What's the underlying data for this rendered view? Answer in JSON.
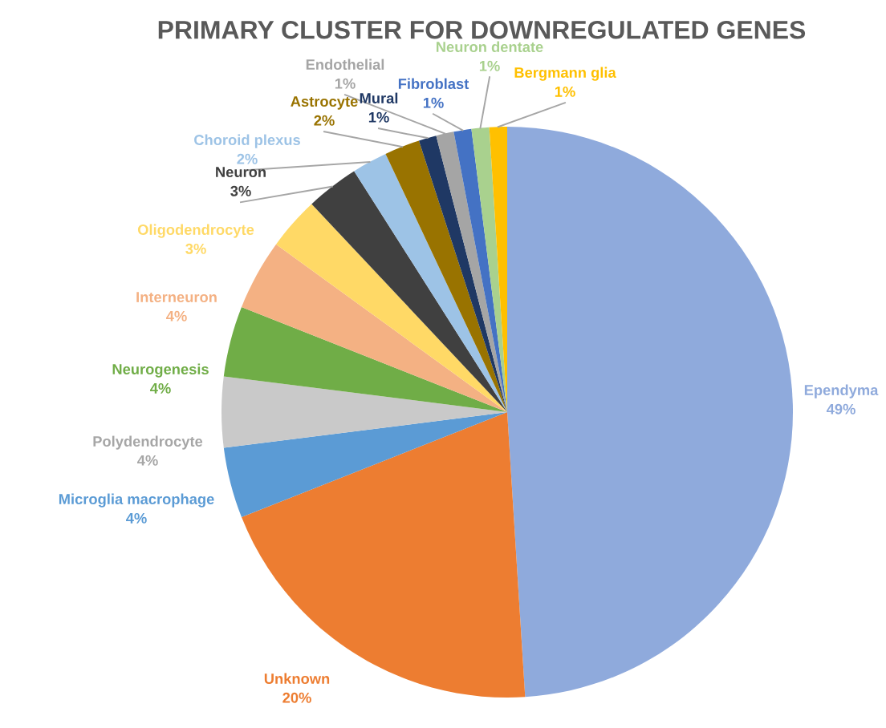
{
  "chart_data": {
    "type": "pie",
    "title": "PRIMARY CLUSTER FOR DOWNREGULATED GENES",
    "categories": [
      "Ependyma",
      "Unknown",
      "Microglia macrophage",
      "Polydendrocyte",
      "Neurogenesis",
      "Interneuron",
      "Oligodendrocyte",
      "Neuron",
      "Choroid plexus",
      "Astrocyte",
      "Mural",
      "Endothelial",
      "Fibroblast",
      "Neuron dentate",
      "Bergmann glia"
    ],
    "values": [
      49,
      20,
      4,
      4,
      4,
      4,
      3,
      3,
      2,
      2,
      1,
      1,
      1,
      1,
      1
    ],
    "colors": [
      "#8faadc",
      "#ed7d31",
      "#5b9bd5",
      "#c9c9c9",
      "#70ad47",
      "#f4b183",
      "#ffd966",
      "#404040",
      "#9dc3e6",
      "#997300",
      "#1f3864",
      "#a5a5a5",
      "#4472c4",
      "#a9d18e",
      "#ffc000"
    ],
    "value_labels": [
      "49%",
      "20%",
      "4%",
      "4%",
      "4%",
      "4%",
      "3%",
      "3%",
      "2%",
      "2%",
      "1%",
      "1%",
      "1%",
      "1%",
      "1%"
    ],
    "legend": false
  }
}
